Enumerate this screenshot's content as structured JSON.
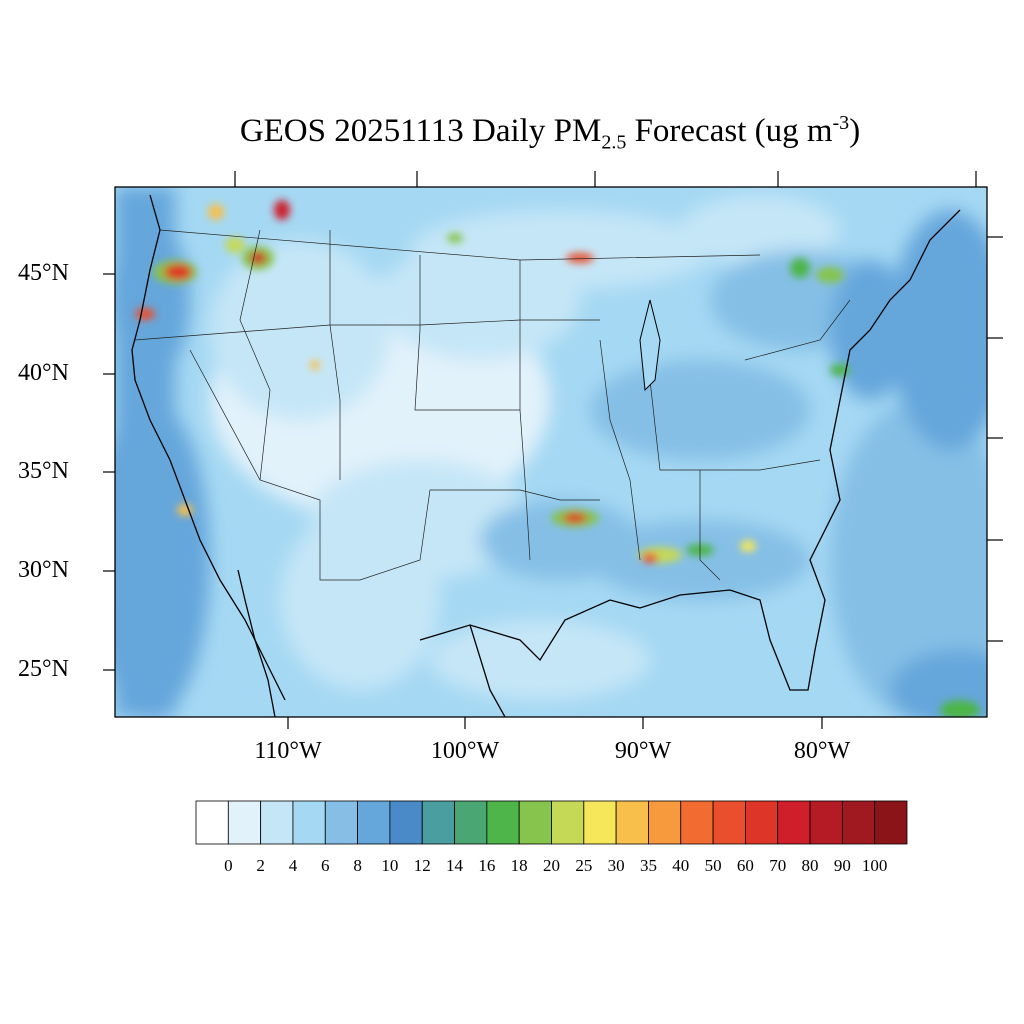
{
  "title": {
    "prefix": "GEOS 20251113 Daily PM",
    "subscript": "2.5",
    "middle": " Forecast (ug m",
    "superscript": "-3",
    "suffix": ")"
  },
  "lat_labels": [
    "45°N",
    "40°N",
    "35°N",
    "30°N",
    "25°N"
  ],
  "lon_labels": [
    "110°W",
    "100°W",
    "90°W",
    "80°W"
  ],
  "colorbar": {
    "labels": [
      "0",
      "2",
      "4",
      "6",
      "8",
      "10",
      "12",
      "14",
      "16",
      "18",
      "20",
      "25",
      "30",
      "35",
      "40",
      "50",
      "60",
      "70",
      "80",
      "90",
      "100"
    ],
    "colors": [
      "#ffffff",
      "#e2f2fb",
      "#c5e6f7",
      "#a5d8f3",
      "#85bfe6",
      "#65a6db",
      "#4a8ac8",
      "#4a9ea0",
      "#4aa672",
      "#4db54a",
      "#86c44e",
      "#c5d957",
      "#f5e65a",
      "#f8c04a",
      "#f69a3d",
      "#f26c32",
      "#ea4f2d",
      "#dd3628",
      "#cf1f2a",
      "#b51b25",
      "#a01820",
      "#8b1419"
    ]
  },
  "map_colors": {
    "ocean_base": "#a5d8f3",
    "land_base": "#a5d8f3",
    "very_light": "#e2f2fb",
    "light": "#c5e6f7",
    "mid": "#85bfe6",
    "dark": "#65a6db",
    "darker": "#4a8ac8"
  }
}
